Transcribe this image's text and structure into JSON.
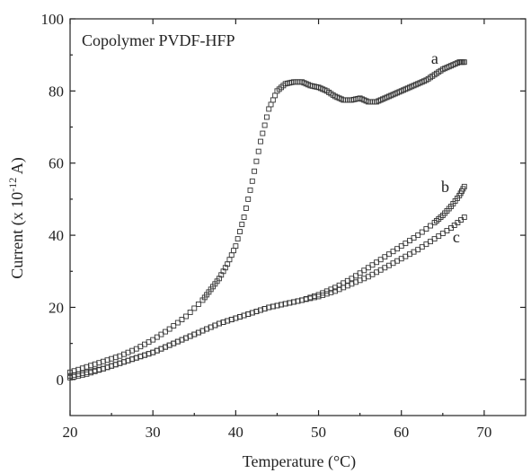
{
  "chart_data": {
    "type": "scatter",
    "title": "Copolymer PVDF-HFP",
    "xlabel": "Temperature (°C)",
    "ylabel_main": "Current (x 10",
    "ylabel_exp": "-12",
    "ylabel_end": " A)",
    "xlim": [
      20,
      75
    ],
    "ylim": [
      -10,
      100
    ],
    "xticks": [
      20,
      30,
      40,
      50,
      60,
      70
    ],
    "yticks": [
      0,
      20,
      40,
      60,
      80,
      100
    ],
    "grid": false,
    "legend": "none",
    "marker": "open-square",
    "series": [
      {
        "name": "a",
        "x": [
          20,
          22,
          24,
          26,
          28,
          30,
          32,
          34,
          36,
          37,
          38,
          39,
          40,
          41,
          42,
          43,
          44,
          45,
          46,
          47,
          48,
          49,
          50,
          51,
          52,
          53,
          54,
          55,
          56,
          57,
          58,
          59,
          60,
          61,
          62,
          63,
          64,
          65,
          66,
          67,
          67.6
        ],
        "y": [
          2,
          3.5,
          5,
          6.5,
          8.5,
          11,
          14,
          17.5,
          22,
          25,
          28,
          32,
          37,
          45,
          55,
          66,
          75,
          80,
          82,
          82.5,
          82.5,
          81.5,
          81,
          80,
          78.5,
          77.5,
          77.5,
          78,
          77,
          77,
          78,
          79,
          80,
          81,
          82,
          83,
          84.5,
          86,
          87,
          88,
          88
        ]
      },
      {
        "name": "b",
        "x": [
          20,
          22,
          24,
          26,
          28,
          30,
          32,
          34,
          36,
          38,
          40,
          42,
          44,
          46,
          48,
          50,
          52,
          54,
          56,
          58,
          60,
          62,
          64,
          65,
          66,
          67,
          67.6
        ],
        "y": [
          1,
          2,
          3,
          4.5,
          6,
          7.5,
          9.5,
          11.5,
          13.5,
          15.5,
          17,
          18.5,
          20,
          21,
          22,
          23.5,
          25.5,
          28,
          31,
          34,
          37,
          40,
          43.5,
          45.5,
          48,
          51,
          53.5
        ]
      },
      {
        "name": "c",
        "x": [
          20,
          22,
          24,
          26,
          28,
          30,
          32,
          34,
          36,
          38,
          40,
          42,
          44,
          46,
          48,
          50,
          52,
          54,
          56,
          58,
          60,
          62,
          64,
          66,
          67.6
        ],
        "y": [
          0.5,
          1.5,
          3,
          4.5,
          6,
          7.5,
          9.5,
          11.5,
          13.5,
          15.5,
          17,
          18.5,
          20,
          21,
          22,
          23,
          24.5,
          26.5,
          28.5,
          31,
          33.5,
          36,
          39,
          42,
          45
        ]
      }
    ],
    "curve_labels": [
      {
        "text": "a",
        "x": 63.6,
        "y": 87.5
      },
      {
        "text": "b",
        "x": 64.8,
        "y": 52
      },
      {
        "text": "c",
        "x": 66.2,
        "y": 38
      }
    ]
  }
}
